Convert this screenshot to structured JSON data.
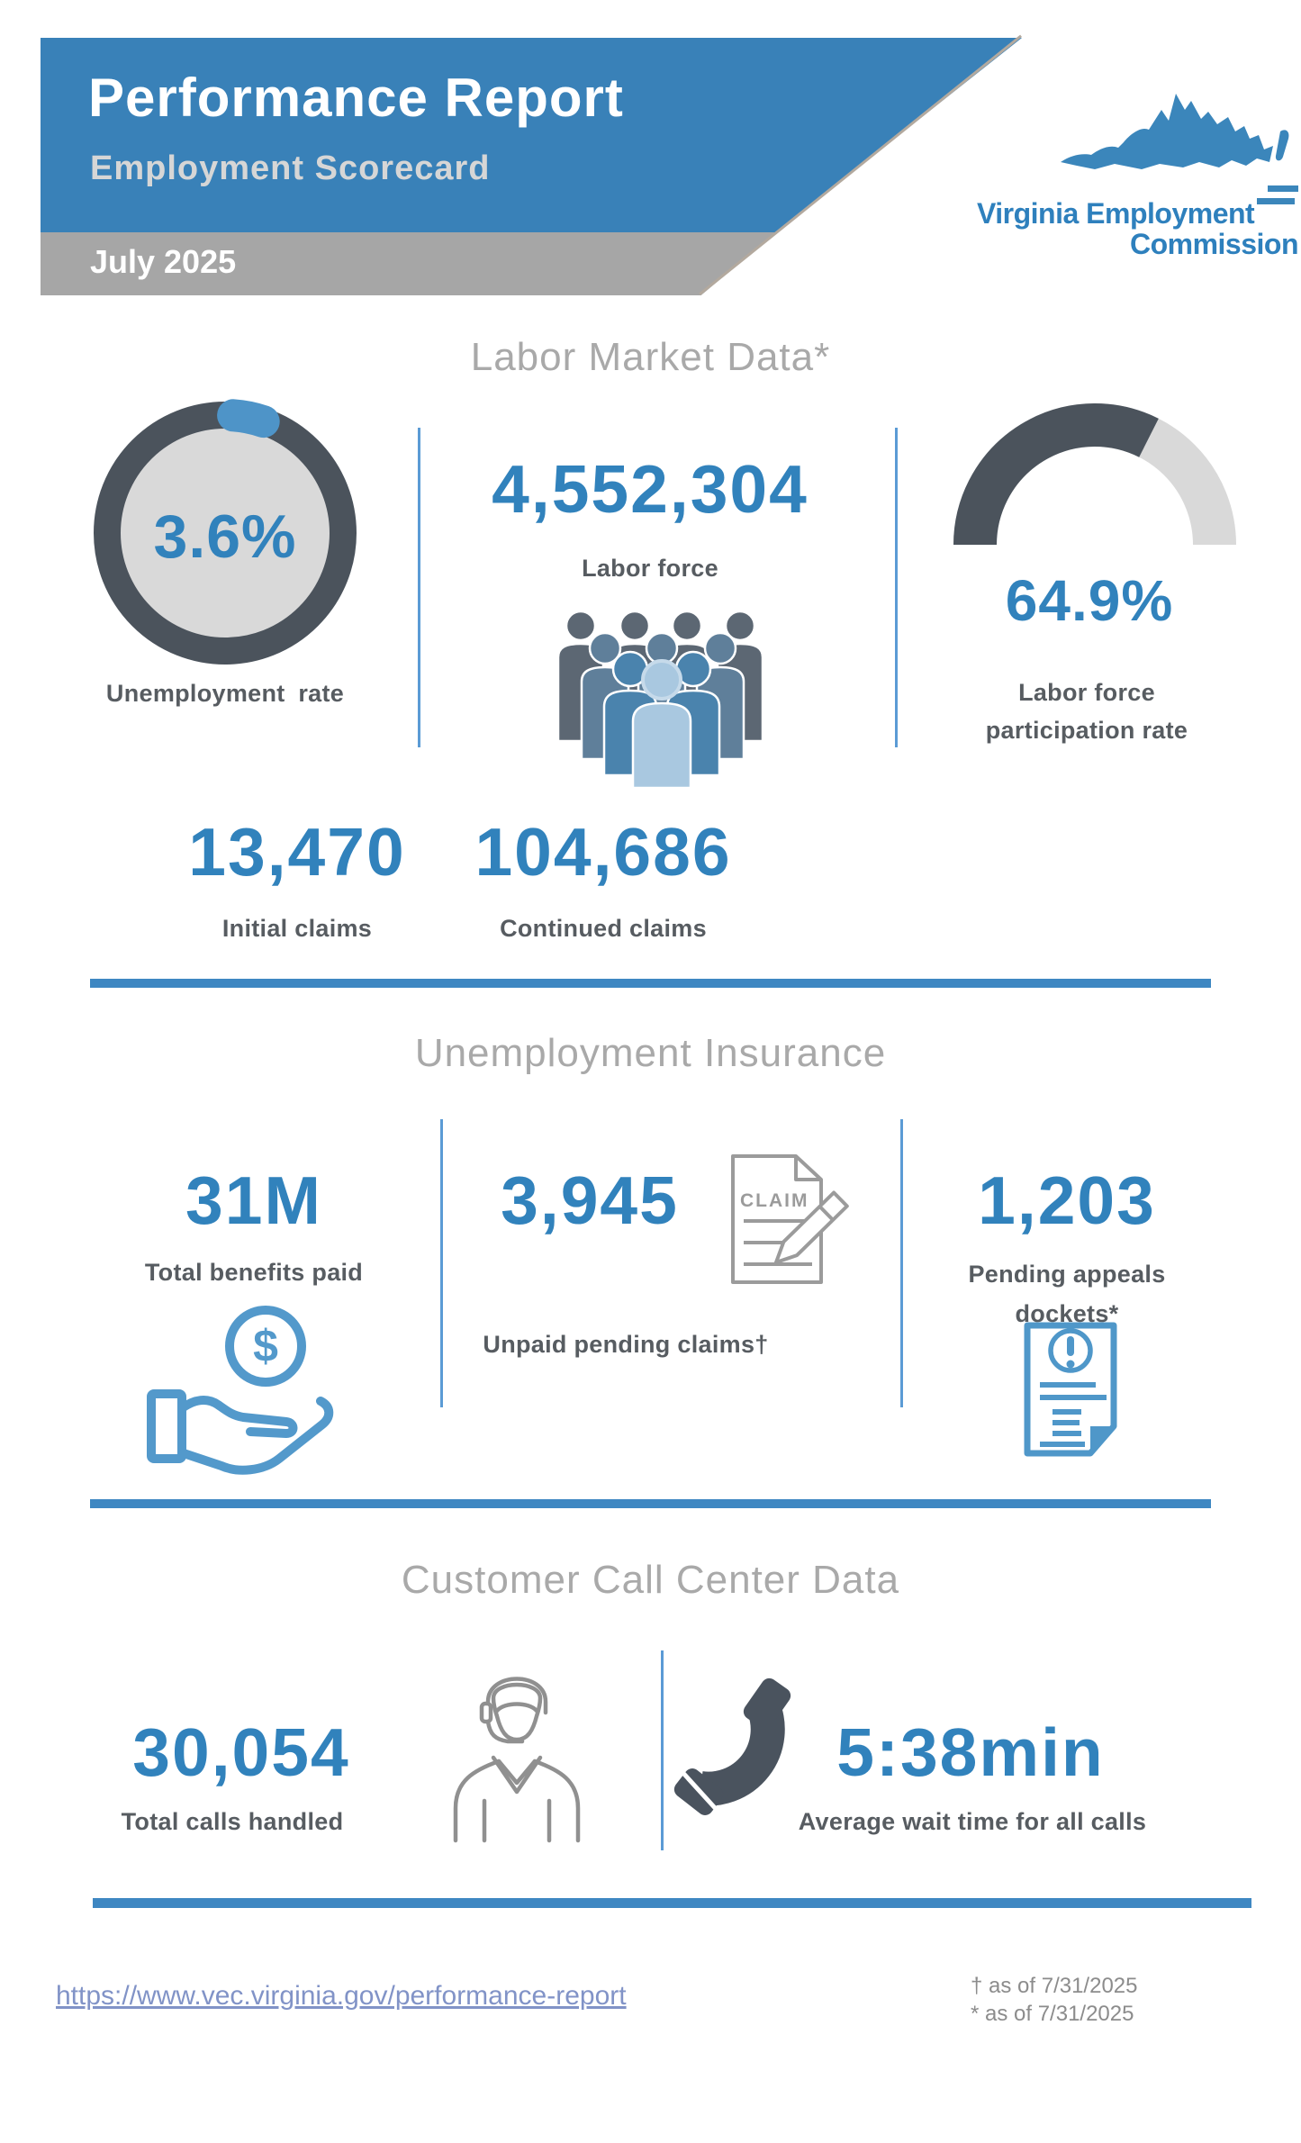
{
  "palette": {
    "header_blue": "#3981b8",
    "bar_gray": "#a6a6a6",
    "number_blue": "#3182bc",
    "label_gray": "#575c61",
    "section_title_gray": "#a9a9a9",
    "divider_blue": "#3e87c2",
    "thin_divider_blue": "#5b9bd5",
    "chart_dark_slate": "#4b535c",
    "chart_light_gray": "#d9d9d9",
    "icon_blue": "#5399cb",
    "icon_gray": "#9b9b9b",
    "link_blue": "#8193c7"
  },
  "header": {
    "title": "Performance Report",
    "subtitle": "Employment Scorecard",
    "period": "July 2025",
    "logo_line1": "Virginia Employment",
    "logo_line2": "Commission"
  },
  "labor_market": {
    "title": "Labor Market Data*",
    "unemployment_rate": {
      "value": "3.6%",
      "percent": 3.6,
      "label": "Unemployment rate"
    },
    "labor_force": {
      "value": "4,552,304",
      "label": "Labor force"
    },
    "participation_rate": {
      "value": "64.9%",
      "percent": 64.9,
      "label_line1": "Labor force",
      "label_line2": "participation rate"
    },
    "initial_claims": {
      "value": "13,470",
      "label": "Initial claims"
    },
    "continued_claims": {
      "value": "104,686",
      "label": "Continued claims"
    }
  },
  "unemployment_insurance": {
    "title": "Unemployment Insurance",
    "total_benefits": {
      "value": "31M",
      "label": "Total benefits paid",
      "coin_symbol": "$"
    },
    "unpaid_claims": {
      "value": "3,945",
      "label": "Unpaid pending claims†",
      "document_text": "CLAIM"
    },
    "pending_appeals": {
      "value": "1,203",
      "label_line1": "Pending appeals",
      "label_line2": "dockets*"
    }
  },
  "call_center": {
    "title": "Customer Call Center Data",
    "calls_handled": {
      "value": "30,054",
      "label": "Total calls handled"
    },
    "wait_time": {
      "value": "5:38min",
      "label": "Average wait time for all calls"
    }
  },
  "footer": {
    "link": "https://www.vec.virginia.gov/performance-report",
    "footnote1": "† as of 7/31/2025",
    "footnote2": "* as of 7/31/2025"
  }
}
